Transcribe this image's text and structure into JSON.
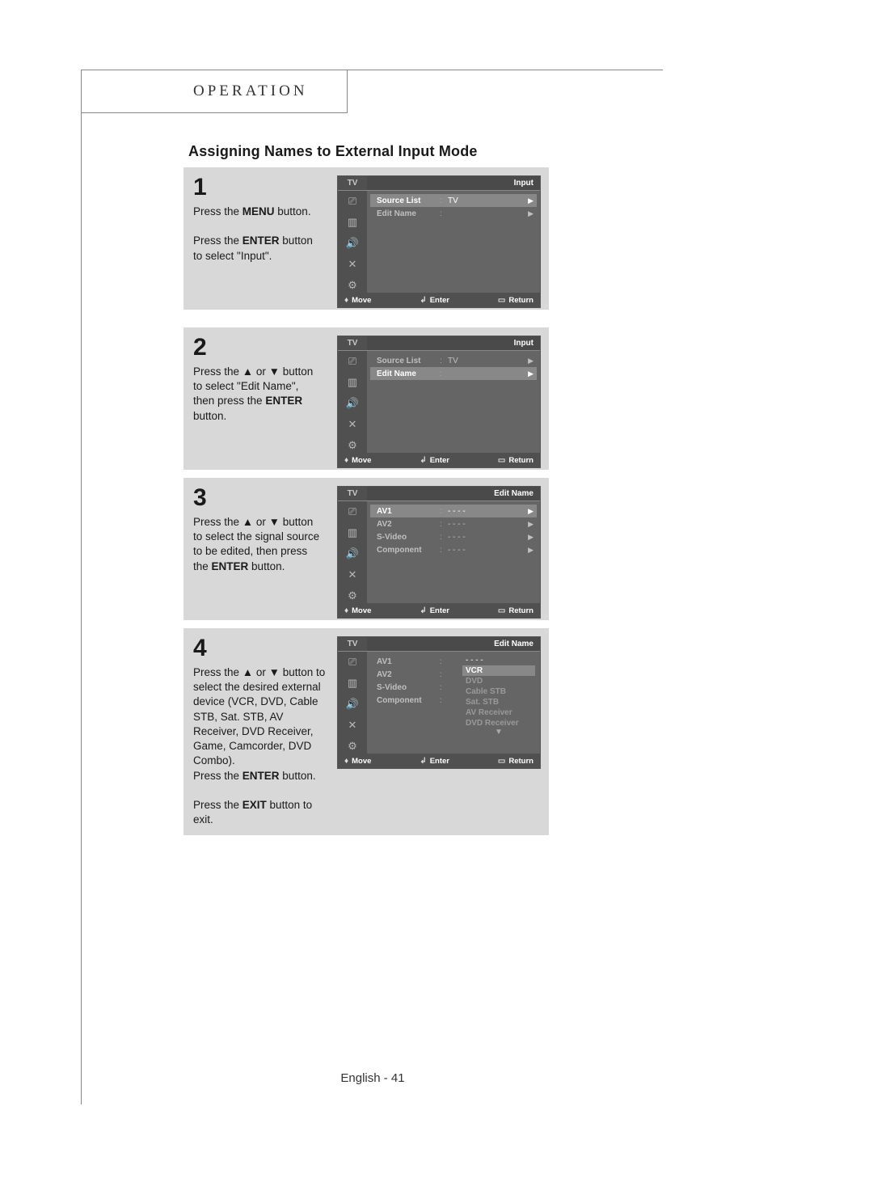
{
  "header": {
    "operation_label": "OPERATION"
  },
  "title": "Assigning Names to External Input Mode",
  "footer": {
    "text": "English - 41"
  },
  "osd_common": {
    "footer_move": "Move",
    "footer_enter": "Enter",
    "footer_return": "Return",
    "tv_label": "TV",
    "sidebar_icons": [
      "input-icon",
      "picture-icon",
      "sound-icon",
      "channel-icon",
      "setup-icon"
    ]
  },
  "steps": [
    {
      "num": "1",
      "text_html": "Press the <b>MENU</b> button.<br><br>Press the <b>ENTER</b> button to select \"Input\".",
      "osd": {
        "title": "Input",
        "mode": "menu",
        "rows": [
          {
            "label": "Source List",
            "value": "TV",
            "selected": true,
            "arrow": true
          },
          {
            "label": "Edit Name",
            "value": "",
            "selected": false,
            "arrow": true
          }
        ]
      }
    },
    {
      "num": "2",
      "text_html": "Press the ▲ or ▼ button to select \"Edit Name\", then press the <b>ENTER</b> button.",
      "osd": {
        "title": "Input",
        "mode": "menu",
        "rows": [
          {
            "label": "Source List",
            "value": "TV",
            "selected": false,
            "arrow": true
          },
          {
            "label": "Edit Name",
            "value": "",
            "selected": true,
            "arrow": true
          }
        ]
      }
    },
    {
      "num": "3",
      "text_html": "Press the ▲ or ▼ button to select the signal source to be edited, then press the <b>ENTER</b> button.",
      "osd": {
        "title": "Edit Name",
        "mode": "menu",
        "rows": [
          {
            "label": "AV1",
            "value": "- - - -",
            "selected": true,
            "arrow": true
          },
          {
            "label": "AV2",
            "value": "- - - -",
            "selected": false,
            "arrow": true
          },
          {
            "label": "S-Video",
            "value": "- - - -",
            "selected": false,
            "arrow": true
          },
          {
            "label": "Component",
            "value": "- - - -",
            "selected": false,
            "arrow": true
          }
        ]
      }
    },
    {
      "num": "4",
      "text_html": "Press the ▲ or ▼ button to select the desired external device (VCR, DVD, Cable STB, Sat. STB, AV Receiver, DVD Receiver, Game, Camcorder, DVD Combo).<br>Press the <b>ENTER</b> button.<br><br>Press the <b>EXIT</b> button to exit.",
      "osd": {
        "title": "Edit Name",
        "mode": "dropdown",
        "rows": [
          {
            "label": "AV1",
            "value": "",
            "selected": false,
            "arrow": false
          },
          {
            "label": "AV2",
            "value": "",
            "selected": false,
            "arrow": false
          },
          {
            "label": "S-Video",
            "value": "",
            "selected": false,
            "arrow": false
          },
          {
            "label": "Component",
            "value": "",
            "selected": false,
            "arrow": false
          }
        ],
        "dropdown": {
          "items": [
            "- - - -",
            "VCR",
            "DVD",
            "Cable STB",
            "Sat. STB",
            "AV Receiver",
            "DVD Receiver"
          ],
          "selected_index": 1
        }
      }
    }
  ],
  "layout": {
    "step_tops": [
      120,
      318,
      504,
      690
    ],
    "step_heights": [
      176,
      176,
      176,
      200
    ]
  },
  "colors": {
    "panel_bg": "#d8d8d8",
    "osd_bg": "#656565",
    "osd_dark": "#505050",
    "osd_sel": "#888888",
    "text_light": "#c0c0c0"
  }
}
